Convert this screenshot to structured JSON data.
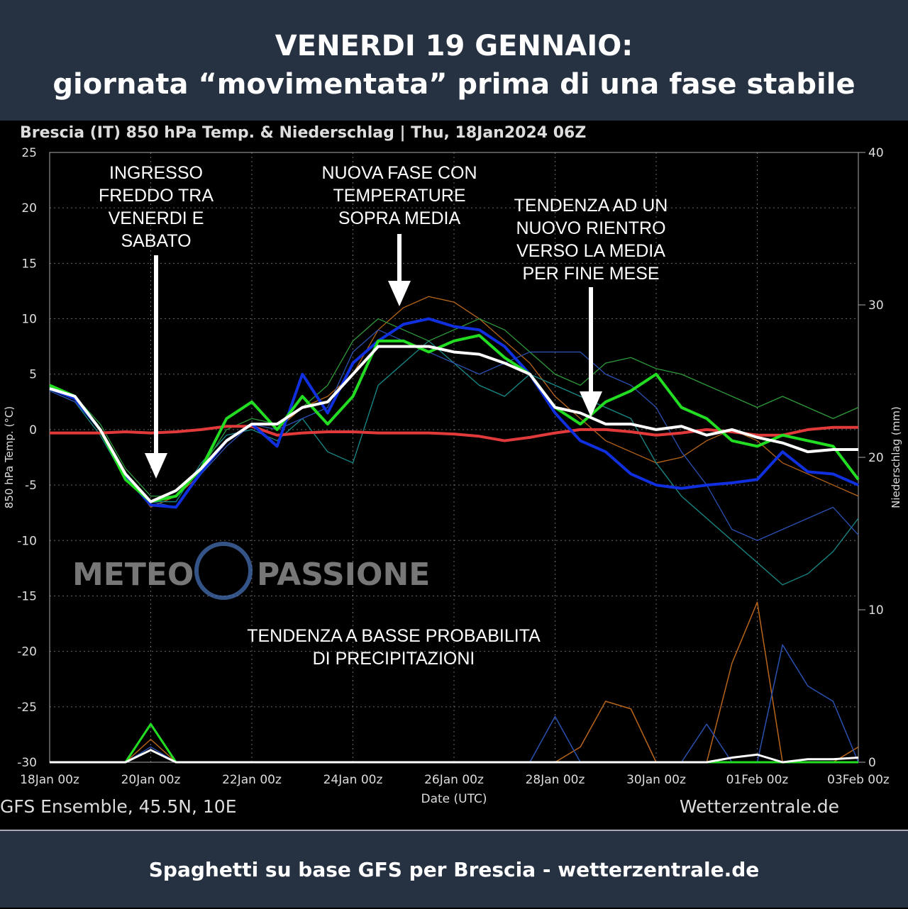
{
  "header": {
    "title": [
      "VENERDI 19 GENNAIO:",
      "giornata “movimentata” prima di una fase stabile"
    ]
  },
  "chart_data": {
    "type": "line",
    "title": "Brescia  (IT)  850 hPa Temp. & Niederschlag | Thu, 18Jan2024 06Z",
    "ylabel": "850 hPa Temp. (°C)",
    "y2label": "Niederschlag (mm)",
    "xlabel": "Date (UTC)",
    "source_left": "GFS Ensemble, 45.5N, 10E",
    "source_right": "Wetterzentrale.de",
    "watermark": [
      "METEO",
      "PASSIONE"
    ],
    "annotations": [
      [
        "INGRESSO",
        "FREDDO TRA",
        "VENERDI E",
        "SABATO"
      ],
      [
        "NUOVA FASE CON",
        "TEMPERATURE",
        "SOPRA MEDIA"
      ],
      [
        "TENDENZA AD UN",
        "NUOVO RIENTRO",
        "VERSO LA MEDIA",
        "PER FINE MESE"
      ],
      [
        "TENDENZA A BASSE PROBABILITA",
        "DI PRECIPITAZIONI"
      ]
    ],
    "xlim": [
      0,
      384
    ],
    "ylim": [
      -30,
      25
    ],
    "y2lim": [
      0,
      40
    ],
    "xticks": [
      {
        "value": 0,
        "label": "18Jan 00z"
      },
      {
        "value": 48,
        "label": "20Jan 00z"
      },
      {
        "value": 96,
        "label": "22Jan 00z"
      },
      {
        "value": 144,
        "label": "24Jan 00z"
      },
      {
        "value": 192,
        "label": "26Jan 00z"
      },
      {
        "value": 240,
        "label": "28Jan 00z"
      },
      {
        "value": 288,
        "label": "30Jan 00z"
      },
      {
        "value": 336,
        "label": "01Feb 00z"
      },
      {
        "value": 384,
        "label": "03Feb 00z"
      }
    ],
    "yticks": [
      -30,
      -25,
      -20,
      -15,
      -10,
      -5,
      0,
      5,
      10,
      15,
      20,
      25
    ],
    "y2ticks": [
      0,
      10,
      20,
      30,
      40
    ],
    "grid": true,
    "x": [
      0,
      12,
      24,
      36,
      48,
      60,
      72,
      84,
      96,
      108,
      120,
      132,
      144,
      156,
      168,
      180,
      192,
      204,
      216,
      228,
      240,
      252,
      264,
      276,
      288,
      300,
      312,
      324,
      336,
      348,
      360,
      372,
      384
    ],
    "series": [
      {
        "color": "#b8651a",
        "width": 1.3,
        "values": [
          4,
          3,
          0,
          -4,
          -7,
          -6,
          -4,
          -1,
          0.5,
          0,
          2,
          3,
          5,
          9,
          11,
          12,
          11.5,
          10,
          8,
          6,
          3,
          1,
          -1,
          -2,
          -3,
          -2.5,
          -1,
          0,
          -1,
          -3,
          -4,
          -5,
          -6
        ]
      },
      {
        "color": "#1a8a8a",
        "width": 1.3,
        "values": [
          3.5,
          2.5,
          -0.5,
          -4.5,
          -6.5,
          -6.5,
          -3,
          -0.5,
          0,
          -1,
          1,
          -2,
          -3,
          4,
          6,
          8,
          6,
          4,
          3,
          5,
          4,
          3,
          2,
          1,
          -3,
          -6,
          -8,
          -10,
          -12,
          -14,
          -13,
          -11,
          -8
        ]
      },
      {
        "color": "#2e9a3a",
        "width": 1.3,
        "values": [
          4,
          3,
          0.5,
          -3.5,
          -6,
          -6,
          -3.5,
          0,
          1,
          0.5,
          2,
          4,
          8,
          10,
          9,
          8,
          9,
          10,
          9,
          7,
          5,
          4,
          6,
          6.5,
          5.5,
          5,
          4,
          3,
          2,
          3,
          2,
          1,
          2
        ]
      },
      {
        "color": "#2a50b0",
        "width": 1.3,
        "values": [
          3.5,
          2.5,
          0,
          -4,
          -6.5,
          -7,
          -4,
          -1.5,
          0.5,
          0,
          1,
          2,
          7,
          9,
          8,
          7,
          6,
          5,
          6,
          7,
          7,
          7,
          5,
          4,
          2,
          -2,
          -5,
          -9,
          -10,
          -9,
          -8,
          -7,
          -9.5
        ]
      },
      {
        "color": "#e23a3a",
        "width": 4,
        "values": [
          -0.3,
          -0.3,
          -0.3,
          -0.2,
          -0.3,
          -0.2,
          0,
          0.3,
          0.3,
          -0.5,
          -0.3,
          -0.2,
          -0.2,
          -0.3,
          -0.3,
          -0.3,
          -0.4,
          -0.6,
          -1,
          -0.7,
          -0.3,
          0,
          0,
          -0.2,
          -0.5,
          -0.3,
          0,
          -0.2,
          -0.5,
          -0.5,
          0,
          0.2,
          0.2
        ]
      },
      {
        "color": "#1030e0",
        "width": 4,
        "values": [
          3.7,
          2.8,
          0,
          -4.2,
          -6.8,
          -7,
          -3.8,
          -1,
          0.5,
          -1.5,
          5,
          1.5,
          6,
          8,
          9.5,
          10,
          9.3,
          9,
          7.5,
          5,
          1.5,
          -1,
          -2,
          -4,
          -5,
          -5.3,
          -5,
          -4.8,
          -4.5,
          -2,
          -3.8,
          -4,
          -5
        ]
      },
      {
        "color": "#22dd22",
        "width": 4,
        "values": [
          4,
          3,
          0,
          -4.5,
          -6.5,
          -6,
          -3.5,
          1,
          2.5,
          0,
          3,
          0.5,
          3,
          8,
          8,
          7,
          8,
          8.5,
          6.5,
          5,
          2,
          0.5,
          2.5,
          3.5,
          5,
          2,
          1,
          -1,
          -1.5,
          -0.5,
          -1,
          -1.5,
          -4.5
        ]
      },
      {
        "color": "#ffffff",
        "width": 4,
        "values": [
          3.7,
          3,
          0,
          -4,
          -6.5,
          -5.5,
          -3.5,
          -1,
          0.5,
          0.5,
          2,
          2.5,
          5,
          7.5,
          7.5,
          7.5,
          7,
          6.8,
          6,
          5,
          2,
          1.5,
          0.5,
          0.5,
          0,
          0.3,
          -0.5,
          0,
          -0.7,
          -1.2,
          -2,
          -1.8,
          -1.8
        ]
      },
      {
        "axis": "y2",
        "color": "#b8651a",
        "width": 1.5,
        "values": [
          0,
          0,
          0,
          0,
          1.5,
          0,
          0,
          0,
          0,
          0,
          0,
          0,
          0,
          0,
          0,
          0,
          0,
          0,
          0,
          0,
          0,
          1,
          4,
          3.5,
          0,
          0,
          0,
          6.5,
          10.5,
          0,
          0,
          0,
          1
        ]
      },
      {
        "axis": "y2",
        "color": "#2a50b0",
        "width": 1.5,
        "values": [
          0,
          0,
          0,
          0,
          1,
          0,
          0,
          0,
          0,
          0,
          0,
          0,
          0,
          0,
          0,
          0,
          0,
          0,
          0,
          0,
          3,
          0,
          0,
          0,
          0,
          0,
          2.5,
          0,
          0,
          7.7,
          5,
          4,
          0
        ]
      },
      {
        "axis": "y2",
        "color": "#22dd22",
        "width": 3,
        "values": [
          0,
          0,
          0,
          0,
          2.5,
          0,
          0,
          0,
          0,
          0,
          0,
          0,
          0,
          0,
          0,
          0,
          0,
          0,
          0,
          0,
          0,
          0,
          0,
          0,
          0,
          0,
          0,
          0,
          0,
          0,
          0,
          0,
          0
        ]
      },
      {
        "axis": "y2",
        "color": "#ffffff",
        "width": 3,
        "values": [
          0,
          0,
          0,
          0,
          0.8,
          0,
          0,
          0,
          0,
          0,
          0,
          0,
          0,
          0,
          0,
          0,
          0,
          0,
          0,
          0,
          0,
          0,
          0,
          0,
          0,
          0,
          0,
          0.3,
          0.5,
          0,
          0.2,
          0.2,
          0.3
        ]
      }
    ]
  },
  "footer": {
    "text": "Spaghetti su base GFS per Brescia - wetterzentrale.de"
  }
}
